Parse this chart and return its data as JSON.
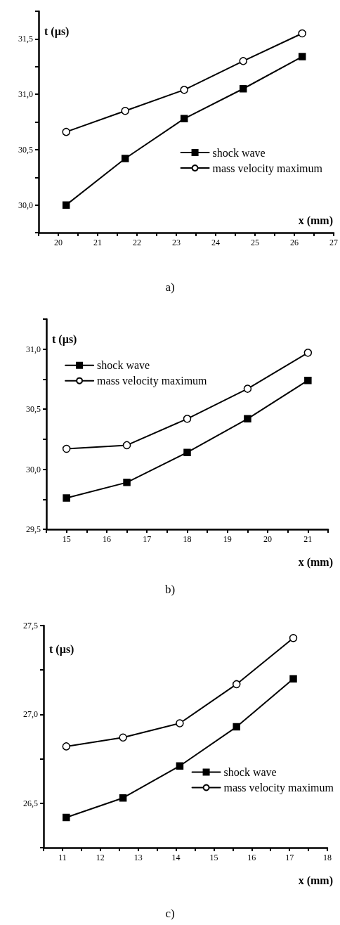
{
  "chart_data": [
    {
      "type": "line",
      "xlabel": "x (mm)",
      "ylabel": "t (µs)",
      "annotations": [
        "a)"
      ],
      "x": [
        20.2,
        21.7,
        23.2,
        24.7,
        26.2
      ],
      "xlim": [
        19.5,
        27
      ],
      "ylim": [
        29.75,
        31.75
      ],
      "xticks": [
        {
          "value": 19.5,
          "label": null
        },
        20,
        {
          "value": 20.5,
          "label": null
        },
        21,
        {
          "value": 21.5,
          "label": null
        },
        22,
        {
          "value": 22.5,
          "label": null
        },
        23,
        {
          "value": 23.5,
          "label": null
        },
        24,
        {
          "value": 24.5,
          "label": null
        },
        25,
        {
          "value": 25.5,
          "label": null
        },
        26,
        {
          "value": 26.5,
          "label": null
        },
        27
      ],
      "yticks": [
        {
          "value": 29.75,
          "label": null
        },
        {
          "value": 30,
          "label": "30,0"
        },
        {
          "value": 30.25,
          "label": null
        },
        {
          "value": 30.5,
          "label": "30,5"
        },
        {
          "value": 30.75,
          "label": null
        },
        {
          "value": 31,
          "label": "31,0"
        },
        {
          "value": 31.25,
          "label": null
        },
        {
          "value": 31.5,
          "label": "31,5"
        },
        {
          "value": 31.75,
          "label": null
        }
      ],
      "grid": false,
      "legend": "right",
      "line_style": "solid",
      "series": [
        {
          "name": "shock wave",
          "color": "#000000",
          "marker": "square",
          "values": [
            30.0,
            30.42,
            30.78,
            31.05,
            31.34
          ]
        },
        {
          "name": "mass velocity maximum",
          "color": "#000000",
          "marker": "circle",
          "values": [
            30.66,
            30.85,
            31.04,
            31.3,
            31.55
          ]
        }
      ]
    },
    {
      "type": "line",
      "xlabel": "x (mm)",
      "ylabel": "t (µs)",
      "annotations": [
        "b)"
      ],
      "x": [
        15,
        16.5,
        18,
        19.5,
        21
      ],
      "xlim": [
        14.5,
        21.5
      ],
      "ylim": [
        29.5,
        31.25
      ],
      "xticks": [
        {
          "value": 14.5,
          "label": null
        },
        15,
        {
          "value": 15.5,
          "label": null
        },
        16,
        {
          "value": 16.5,
          "label": null
        },
        17,
        {
          "value": 17.5,
          "label": null
        },
        18,
        {
          "value": 18.5,
          "label": null
        },
        19,
        {
          "value": 19.5,
          "label": null
        },
        20,
        {
          "value": 20.5,
          "label": null
        },
        21,
        {
          "value": 21.5,
          "label": null
        }
      ],
      "yticks": [
        {
          "value": 29.5,
          "label": "29,5"
        },
        {
          "value": 29.75,
          "label": null
        },
        {
          "value": 30,
          "label": "30,0"
        },
        {
          "value": 30.25,
          "label": null
        },
        {
          "value": 30.5,
          "label": "30,5"
        },
        {
          "value": 30.75,
          "label": null
        },
        {
          "value": 31,
          "label": "31,0"
        },
        {
          "value": 31.25,
          "label": null
        }
      ],
      "grid": false,
      "legend": "top left",
      "line_style": "solid",
      "series": [
        {
          "name": "shock wave",
          "color": "#000000",
          "marker": "square",
          "values": [
            29.76,
            29.89,
            30.14,
            30.42,
            30.74
          ]
        },
        {
          "name": "mass velocity maximum",
          "color": "#000000",
          "marker": "circle",
          "values": [
            30.17,
            30.2,
            30.42,
            30.67,
            30.97
          ]
        }
      ]
    },
    {
      "type": "line",
      "xlabel": "x (mm)",
      "ylabel": "t (µs)",
      "annotations": [
        "c)"
      ],
      "x": [
        11.1,
        12.6,
        14.1,
        15.6,
        17.1
      ],
      "xlim": [
        10.5,
        18
      ],
      "ylim": [
        26.25,
        27.5
      ],
      "xticks": [
        {
          "value": 10.5,
          "label": null
        },
        11,
        {
          "value": 11.5,
          "label": null
        },
        12,
        {
          "value": 12.5,
          "label": null
        },
        13,
        {
          "value": 13.5,
          "label": null
        },
        14,
        {
          "value": 14.5,
          "label": null
        },
        15,
        {
          "value": 15.5,
          "label": null
        },
        16,
        {
          "value": 16.5,
          "label": null
        },
        17,
        {
          "value": 17.5,
          "label": null
        },
        18
      ],
      "yticks": [
        {
          "value": 26.25,
          "label": null
        },
        {
          "value": 26.5,
          "label": "26,5"
        },
        {
          "value": 26.75,
          "label": null
        },
        {
          "value": 27,
          "label": "27,0"
        },
        {
          "value": 27.25,
          "label": null
        },
        {
          "value": 27.5,
          "label": "27,5"
        }
      ],
      "grid": false,
      "legend": "bottom right",
      "line_style": "solid",
      "series": [
        {
          "name": "shock wave",
          "color": "#000000",
          "marker": "square",
          "values": [
            26.42,
            26.53,
            26.71,
            26.93,
            27.2
          ]
        },
        {
          "name": "mass velocity maximum",
          "color": "#000000",
          "marker": "circle",
          "values": [
            26.82,
            26.87,
            26.95,
            27.17,
            27.43
          ]
        }
      ]
    }
  ]
}
